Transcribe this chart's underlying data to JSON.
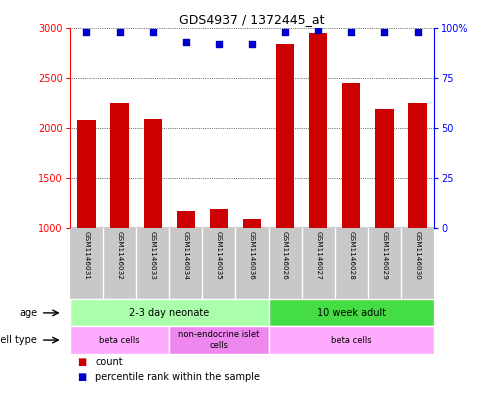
{
  "title": "GDS4937 / 1372445_at",
  "samples": [
    "GSM1146031",
    "GSM1146032",
    "GSM1146033",
    "GSM1146034",
    "GSM1146035",
    "GSM1146036",
    "GSM1146026",
    "GSM1146027",
    "GSM1146028",
    "GSM1146029",
    "GSM1146030"
  ],
  "counts": [
    2080,
    2250,
    2090,
    1170,
    1190,
    1090,
    2840,
    2950,
    2450,
    2190,
    2250
  ],
  "percentiles": [
    98,
    98,
    98,
    93,
    92,
    92,
    98,
    99,
    98,
    98,
    98
  ],
  "bar_color": "#cc0000",
  "dot_color": "#0000cc",
  "ylim_left": [
    1000,
    3000
  ],
  "ylim_right": [
    0,
    100
  ],
  "yticks_left": [
    1000,
    1500,
    2000,
    2500,
    3000
  ],
  "yticks_right": [
    0,
    25,
    50,
    75,
    100
  ],
  "age_groups": [
    {
      "label": "2-3 day neonate",
      "start": 0,
      "end": 6,
      "color": "#aaffaa"
    },
    {
      "label": "10 week adult",
      "start": 6,
      "end": 11,
      "color": "#44dd44"
    }
  ],
  "cell_type_groups": [
    {
      "label": "beta cells",
      "start": 0,
      "end": 3,
      "color": "#ffaaff"
    },
    {
      "label": "non-endocrine islet\ncells",
      "start": 3,
      "end": 6,
      "color": "#ee88ee"
    },
    {
      "label": "beta cells",
      "start": 6,
      "end": 11,
      "color": "#ffaaff"
    }
  ],
  "legend_count_label": "count",
  "legend_percentile_label": "percentile rank within the sample",
  "age_label": "age",
  "cell_type_label": "cell type",
  "sample_bg_color": "#c8c8c8"
}
